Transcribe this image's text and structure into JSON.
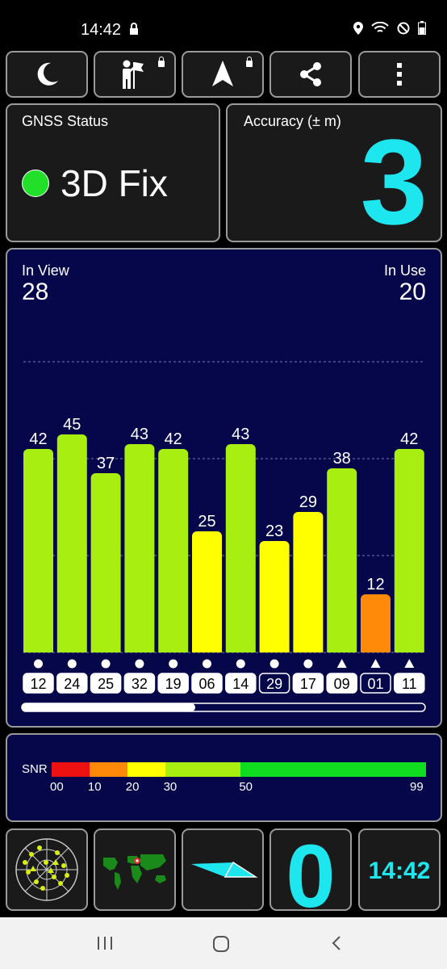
{
  "status_bar": {
    "time": "14:42"
  },
  "toolbar": [
    {
      "name": "night-mode-button",
      "icon": "moon-icon"
    },
    {
      "name": "mode-selector-button",
      "icon": "person-flag-icon",
      "locked": true
    },
    {
      "name": "navigate-button",
      "icon": "navigation-arrow-icon",
      "locked": true
    },
    {
      "name": "share-button",
      "icon": "share-icon"
    },
    {
      "name": "more-menu-button",
      "icon": "more-vert-icon"
    }
  ],
  "gnss": {
    "label": "GNSS Status",
    "fix": "3D Fix",
    "fix_color": "#22e02a"
  },
  "accuracy": {
    "label": "Accuracy (± m)",
    "value": "3",
    "color": "#1ee6ee"
  },
  "sky": {
    "in_view_label": "In View",
    "in_view": "28",
    "in_use_label": "In Use",
    "in_use": "20",
    "satellites": [
      {
        "id": "12",
        "snr": 42,
        "marker": "circle",
        "boxed": false
      },
      {
        "id": "24",
        "snr": 45,
        "marker": "circle",
        "boxed": false
      },
      {
        "id": "25",
        "snr": 37,
        "marker": "circle",
        "boxed": false
      },
      {
        "id": "32",
        "snr": 43,
        "marker": "circle",
        "boxed": false
      },
      {
        "id": "19",
        "snr": 42,
        "marker": "circle",
        "boxed": false
      },
      {
        "id": "06",
        "snr": 25,
        "marker": "circle",
        "boxed": false
      },
      {
        "id": "14",
        "snr": 43,
        "marker": "circle",
        "boxed": false
      },
      {
        "id": "29",
        "snr": 23,
        "marker": "circle",
        "boxed": true
      },
      {
        "id": "17",
        "snr": 29,
        "marker": "circle",
        "boxed": false
      },
      {
        "id": "09",
        "snr": 38,
        "marker": "triangle",
        "boxed": false
      },
      {
        "id": "01",
        "snr": 12,
        "marker": "triangle",
        "boxed": true
      },
      {
        "id": "11",
        "snr": 42,
        "marker": "triangle",
        "boxed": false
      }
    ],
    "scroll_fraction": 0.43
  },
  "snr_legend": {
    "label": "SNR",
    "segments": [
      {
        "from": 0,
        "to": 10,
        "color": "#ee1111"
      },
      {
        "from": 10,
        "to": 20,
        "color": "#ff8a0a"
      },
      {
        "from": 20,
        "to": 30,
        "color": "#ffff00"
      },
      {
        "from": 30,
        "to": 50,
        "color": "#a8ee10"
      },
      {
        "from": 50,
        "to": 99,
        "color": "#10dd20"
      }
    ],
    "ticks": [
      "00",
      "10",
      "20",
      "30",
      "50",
      "99"
    ]
  },
  "bottom": {
    "satellite_count": "0",
    "clock": "14:42"
  }
}
